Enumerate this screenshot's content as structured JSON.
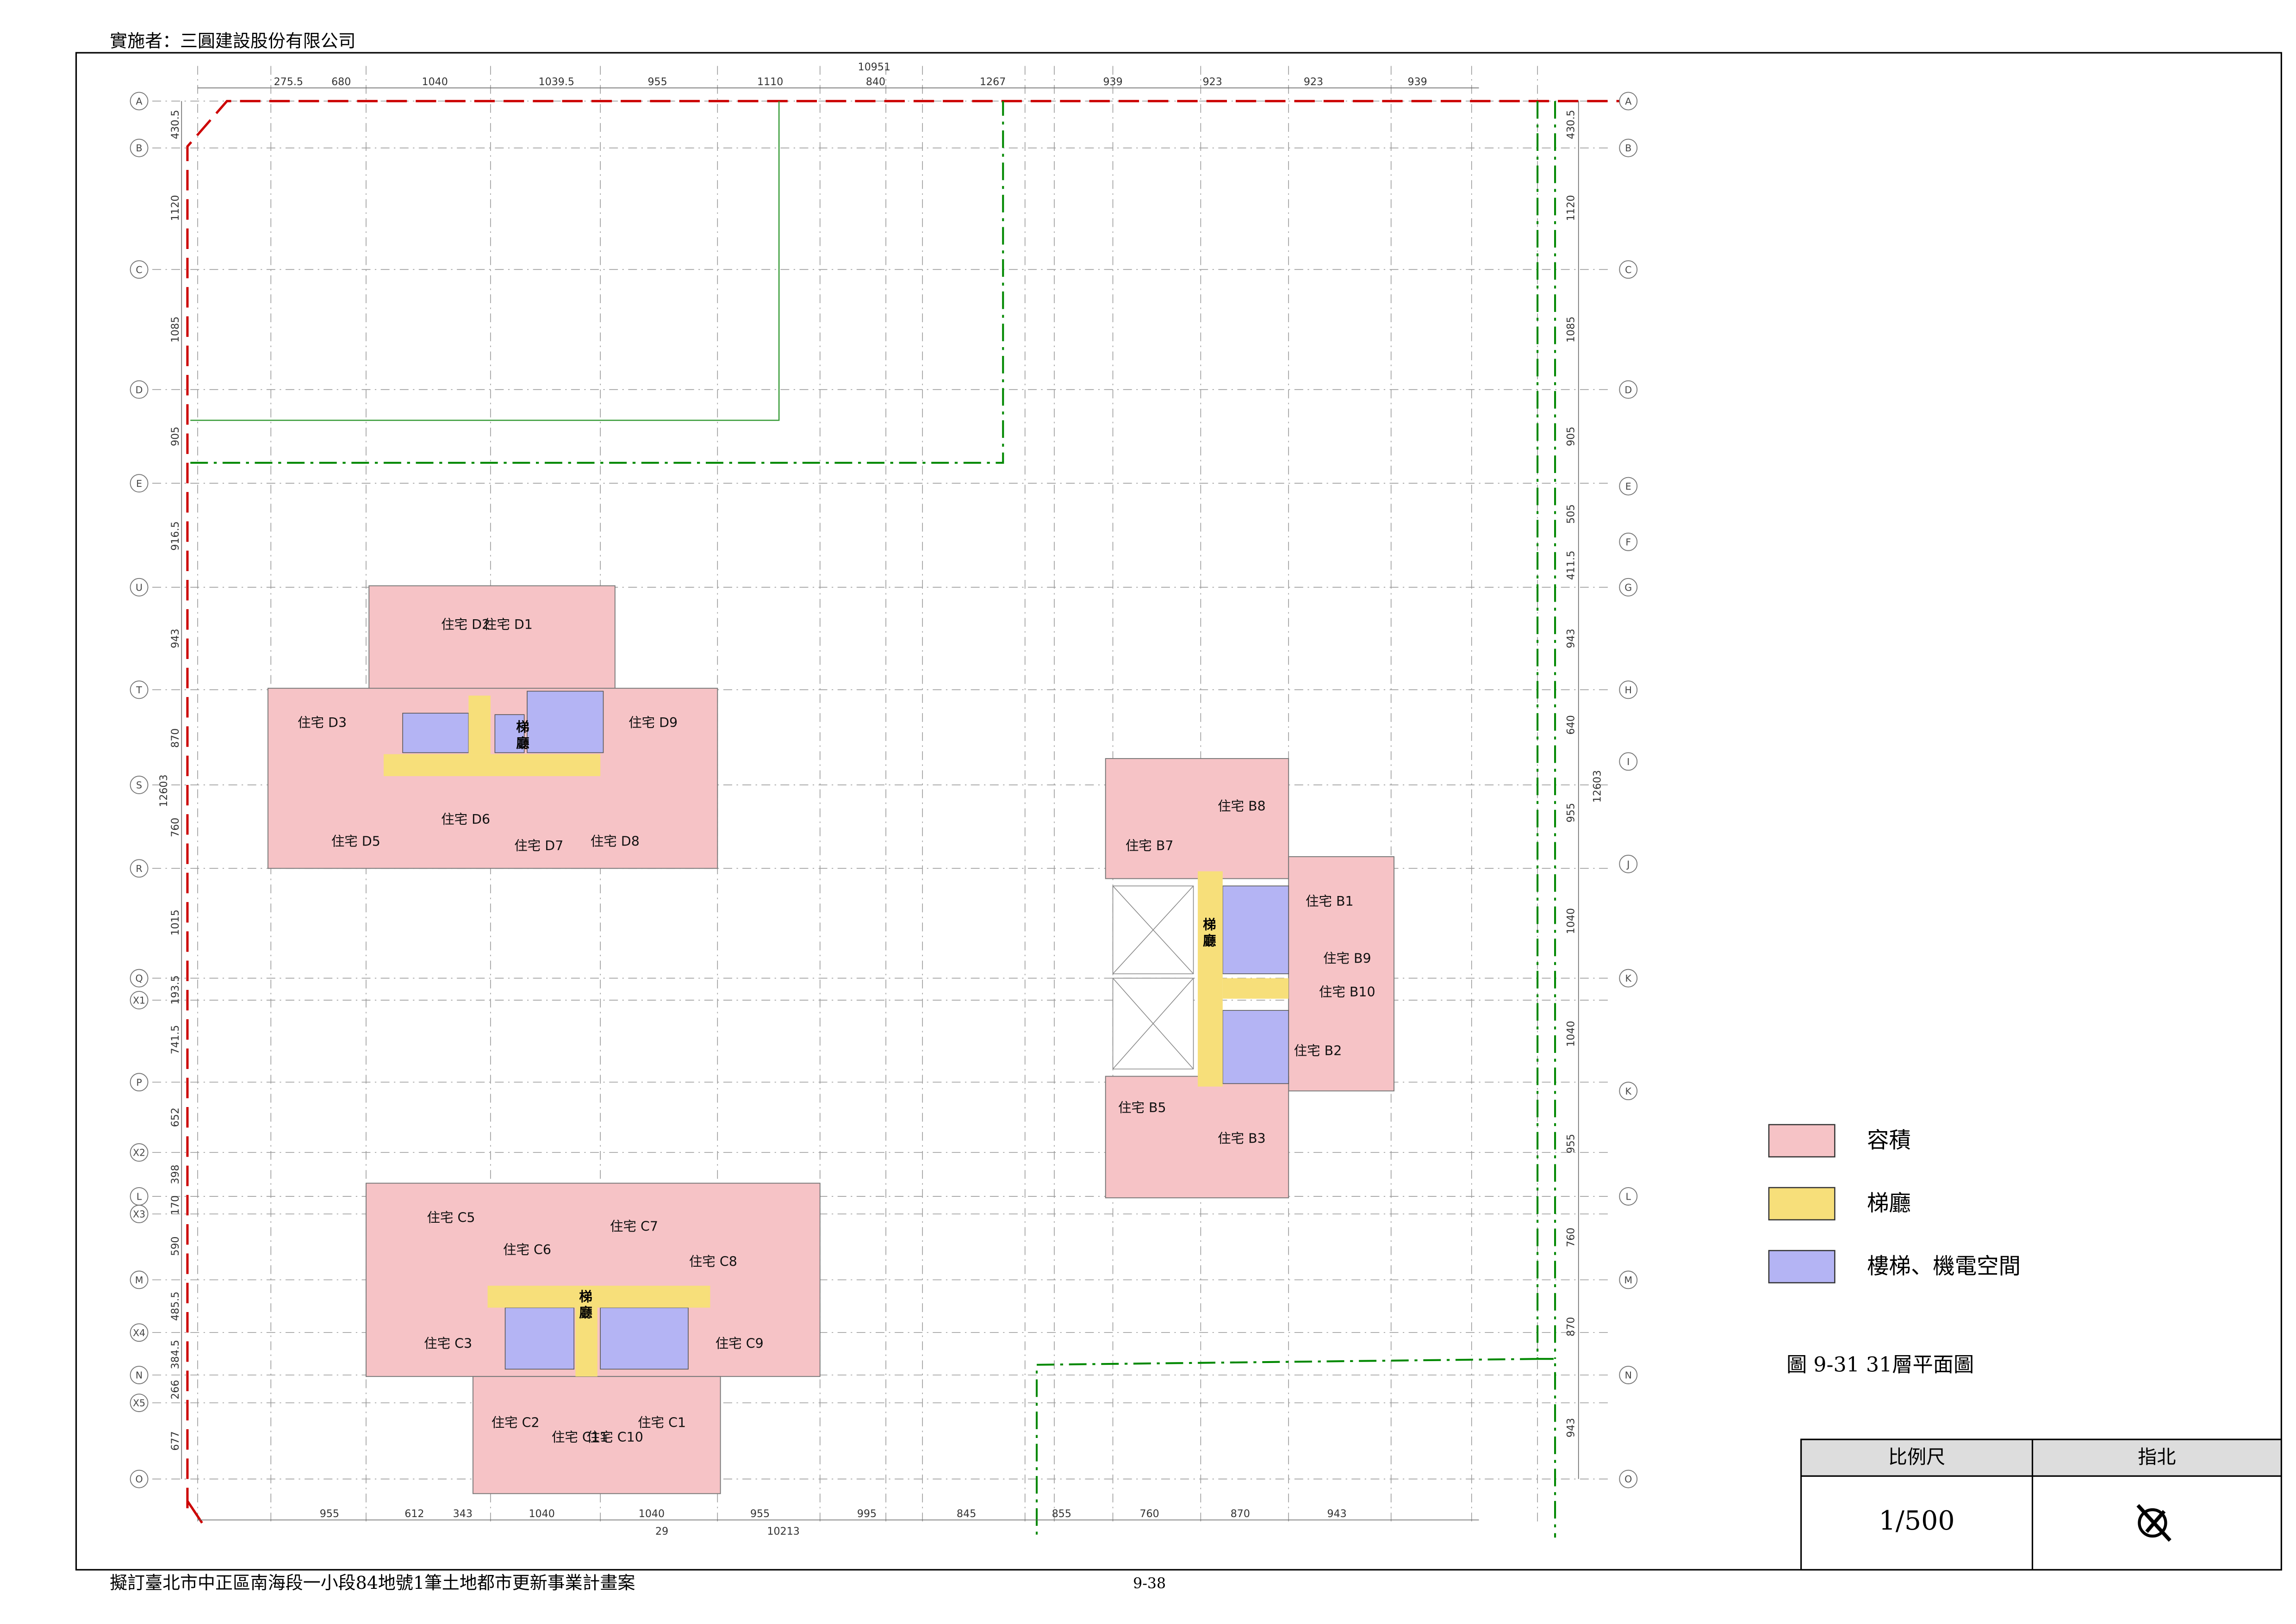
{
  "header": "實施者：三圓建設股份有限公司",
  "footer": "擬訂臺北市中正區南海段一小段84地號1筆土地都市更新事業計畫案",
  "page_number": "9-38",
  "grid": {
    "left": [
      "A",
      "B",
      "C",
      "D",
      "E",
      "U",
      "T",
      "S",
      "R",
      "Q",
      "X1",
      "P",
      "X2",
      "L",
      "X3",
      "M",
      "X4",
      "N",
      "X5",
      "O"
    ],
    "right": [
      "A",
      "B",
      "C",
      "D",
      "E",
      "F",
      "G",
      "H",
      "I",
      "J",
      "K",
      "K",
      "L",
      "M",
      "N",
      "O"
    ]
  },
  "dimensions": {
    "top_total": 10951,
    "top": [
      275.5,
      680,
      1040,
      1039.5,
      955,
      1110,
      840,
      1267,
      939,
      923,
      923,
      939
    ],
    "bottom": [
      955,
      612,
      343,
      1040,
      1040,
      955,
      995,
      845,
      855,
      760,
      870,
      943
    ],
    "bottom_total": 10213,
    "bottom_extra": 29,
    "left": [
      430.5,
      1120,
      1085,
      905,
      916.5,
      943,
      870,
      12603,
      760,
      1015,
      193.5,
      741.5,
      652,
      398,
      170,
      590,
      485.5,
      384.5,
      266,
      677
    ],
    "right": [
      430.5,
      1120,
      1085,
      905,
      505,
      411.5,
      943,
      640,
      12603,
      955,
      1040,
      1040,
      955,
      760,
      870,
      943
    ]
  },
  "buildings": [
    {
      "core_label": [
        "梯",
        "廳"
      ],
      "units": [
        "住宅 D2",
        "住宅 D1",
        "住宅 D3",
        "住宅 D9",
        "住宅 D5",
        "住宅 D6",
        "住宅 D7",
        "住宅 D8"
      ]
    },
    {
      "core_label": [
        "梯",
        "廳"
      ],
      "units": [
        "住宅 B8",
        "住宅 B7",
        "住宅 B1",
        "住宅 B9",
        "住宅 B10",
        "住宅 B2",
        "住宅 B5",
        "住宅 B3"
      ]
    },
    {
      "core_label": [
        "梯",
        "廳"
      ],
      "units": [
        "住宅 C5",
        "住宅 C6",
        "住宅 C7",
        "住宅 C8",
        "住宅 C3",
        "住宅 C9",
        "住宅 C2",
        "住宅 C11",
        "住宅 C10",
        "住宅 C1"
      ]
    }
  ],
  "legend": [
    {
      "label": "容積",
      "color": "#f6c3c6"
    },
    {
      "label": "梯廳",
      "color": "#f7df7a"
    },
    {
      "label": "樓梯、機電空間",
      "color": "#b4b4f4"
    }
  ],
  "caption": "圖 9-31 31層平面圖",
  "scale_table": {
    "headers": [
      "比例尺",
      "指北"
    ],
    "scale": "1/500"
  }
}
